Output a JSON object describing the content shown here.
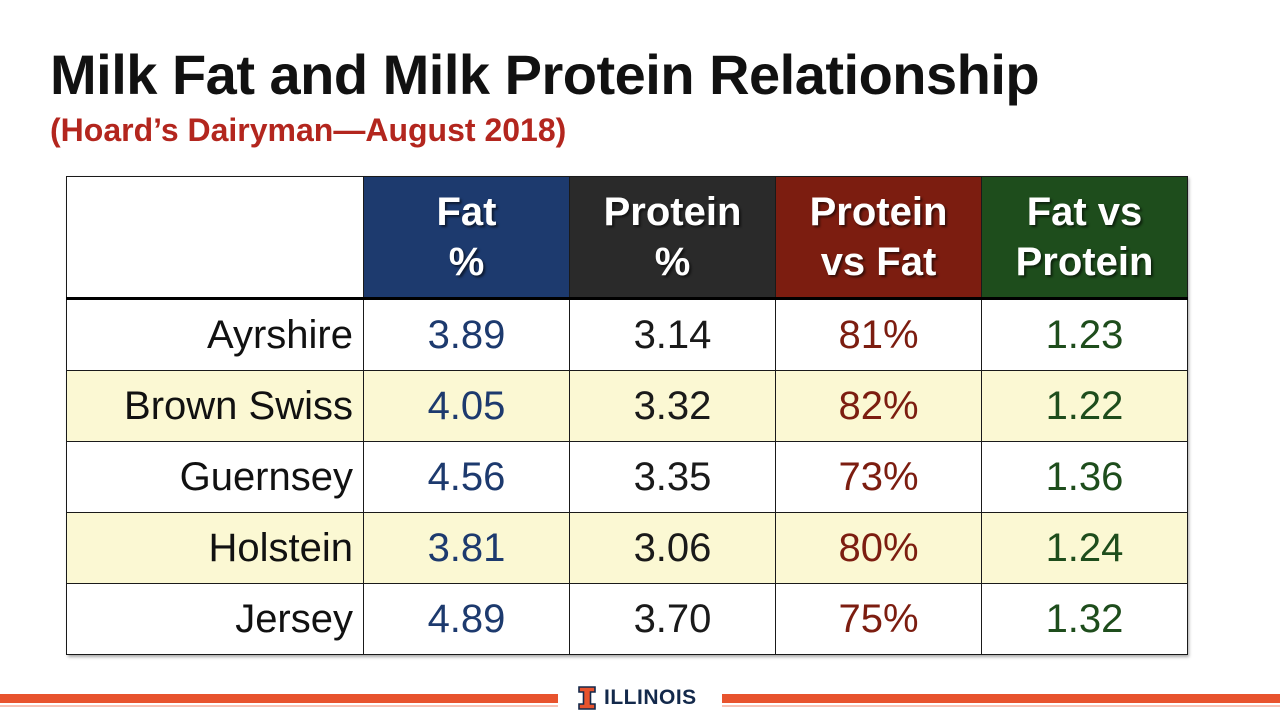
{
  "slide": {
    "title": "Milk Fat and Milk Protein Relationship",
    "subtitle": "(Hoard’s Dairyman—August 2018)"
  },
  "table": {
    "headers": [
      {
        "line1": "Fat",
        "line2": "%"
      },
      {
        "line1": "Protein",
        "line2": "%"
      },
      {
        "line1": "Protein",
        "line2": "vs Fat"
      },
      {
        "line1": "Fat vs",
        "line2": "Protein"
      }
    ],
    "rows": [
      {
        "breed": "Ayrshire",
        "fat": "3.89",
        "protein": "3.14",
        "protein_vs_fat": "81%",
        "fat_vs_protein": "1.23"
      },
      {
        "breed": "Brown Swiss",
        "fat": "4.05",
        "protein": "3.32",
        "protein_vs_fat": "82%",
        "fat_vs_protein": "1.22"
      },
      {
        "breed": "Guernsey",
        "fat": "4.56",
        "protein": "3.35",
        "protein_vs_fat": "73%",
        "fat_vs_protein": "1.36"
      },
      {
        "breed": "Holstein",
        "fat": "3.81",
        "protein": "3.06",
        "protein_vs_fat": "80%",
        "fat_vs_protein": "1.24"
      },
      {
        "breed": "Jersey",
        "fat": "4.89",
        "protein": "3.70",
        "protein_vs_fat": "75%",
        "fat_vs_protein": "1.32"
      }
    ]
  },
  "colors": {
    "fat": "#1d3a6e",
    "protein": "#2a2a2a",
    "protein_vs_fat": "#7c1d10",
    "fat_vs_protein": "#1e4d1c",
    "subtitle": "#b3261e",
    "alt_row": "#fbf8d3",
    "footer_bar": "#e8532d",
    "logo": "#13294b"
  },
  "footer": {
    "logo_icon": "block-i-icon",
    "logo_text": "ILLINOIS"
  }
}
